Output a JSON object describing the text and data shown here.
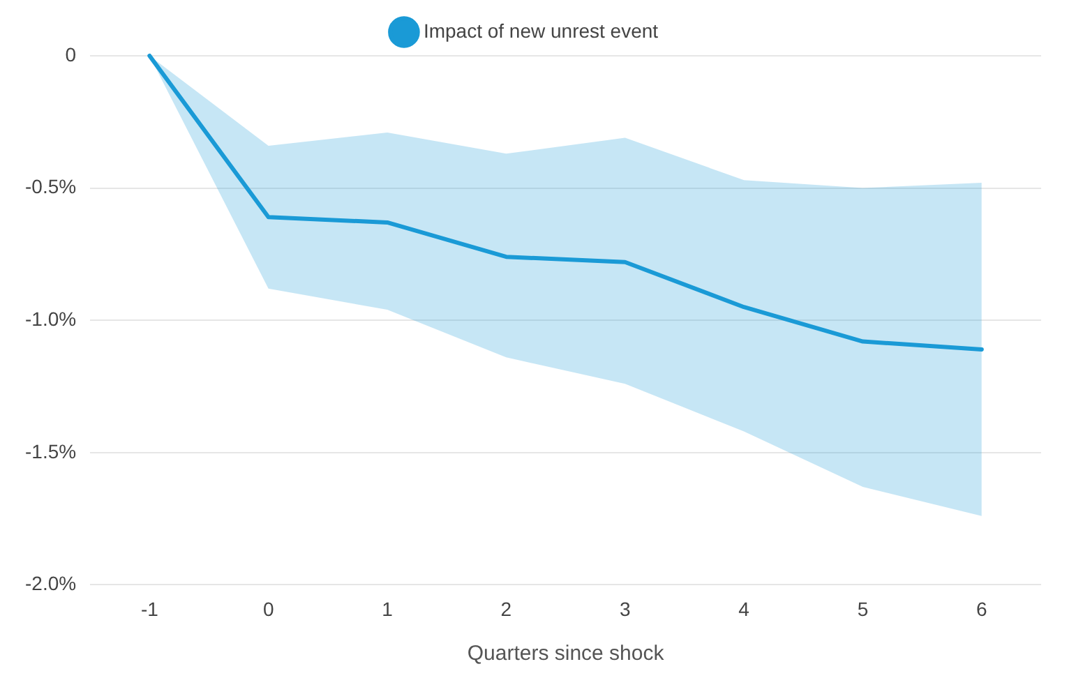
{
  "chart_data": {
    "type": "line",
    "xlabel": "Quarters since shock",
    "categories": [
      "-1",
      "0",
      "1",
      "2",
      "3",
      "4",
      "5",
      "6"
    ],
    "series": [
      {
        "name": "Impact of new unrest event",
        "color": "#1a9ad6",
        "values": [
          0,
          -0.61,
          -0.63,
          -0.76,
          -0.78,
          -0.95,
          -1.08,
          -1.11
        ],
        "lower": [
          0,
          -0.88,
          -0.96,
          -1.14,
          -1.24,
          -1.42,
          -1.63,
          -1.74
        ],
        "upper": [
          0,
          -0.34,
          -0.29,
          -0.37,
          -0.31,
          -0.47,
          -0.5,
          -0.48
        ]
      }
    ],
    "ylim": [
      -2,
      0
    ],
    "yticks": [
      0,
      {
        "value": -0.5,
        "label": "-0.5%"
      },
      {
        "value": -1,
        "label": "-1.0%"
      },
      {
        "value": -1.5,
        "label": "-1.5%"
      },
      {
        "value": -2,
        "label": "-2.0%"
      }
    ],
    "grid": "y",
    "legend": "top",
    "marker": "none",
    "line_style": "solid"
  }
}
